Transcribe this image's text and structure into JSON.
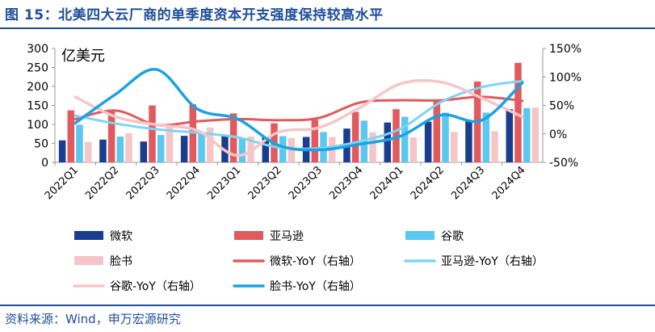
{
  "title": "图 15：北美四大云厂商的单季度资本开支强度保持较高水平",
  "source": "资料来源：Wind，申万宏源研究",
  "chart_data": {
    "type": "bar",
    "unit_label": "亿美元",
    "categories": [
      "2022Q1",
      "2022Q2",
      "2022Q3",
      "2022Q4",
      "2023Q1",
      "2023Q2",
      "2023Q3",
      "2023Q4",
      "2024Q1",
      "2024Q2",
      "2024Q3",
      "2024Q4"
    ],
    "left_axis": {
      "min": 0,
      "max": 300,
      "ticks": [
        0,
        50,
        100,
        150,
        200,
        250,
        300
      ]
    },
    "right_axis": {
      "min": -50,
      "max": 150,
      "ticks": [
        -50,
        0,
        50,
        100,
        150
      ],
      "tick_labels": [
        "-50%",
        "0%",
        "50%",
        "100%",
        "150%"
      ]
    },
    "bar_series": [
      {
        "name": "微软",
        "color": "#1a3d8f",
        "values": [
          58,
          60,
          55,
          70,
          70,
          67,
          67,
          89,
          105,
          107,
          110,
          140
        ]
      },
      {
        "name": "亚马逊",
        "color": "#e05a5e",
        "values": [
          137,
          138,
          150,
          153,
          129,
          103,
          112,
          133,
          140,
          163,
          213,
          262
        ]
      },
      {
        "name": "谷歌",
        "color": "#5bc8ef",
        "values": [
          99,
          68,
          72,
          76,
          62,
          69,
          80,
          110,
          120,
          131,
          131,
          143
        ]
      },
      {
        "name": "脸书",
        "color": "#f6c5c7",
        "values": [
          54,
          77,
          93,
          92,
          68,
          64,
          67,
          79,
          66,
          80,
          82,
          144
        ]
      }
    ],
    "line_series": [
      {
        "name": "微软-YoY（右轴）",
        "color": "#e05a5e",
        "values": [
          26,
          41,
          16,
          22,
          26,
          24,
          28,
          55,
          59,
          59,
          65,
          58
        ]
      },
      {
        "name": "亚马逊-YoY（右轴）",
        "color": "#7fd3f3",
        "values": [
          32,
          18,
          8,
          2,
          -6,
          -24,
          -25,
          -13,
          9,
          56,
          82,
          93
        ]
      },
      {
        "name": "谷歌-YoY（右轴）",
        "color": "#f6c5c7",
        "values": [
          65,
          30,
          16,
          6,
          -38,
          3,
          11,
          46,
          88,
          91,
          63,
          30
        ]
      },
      {
        "name": "脸书-YoY（右轴）",
        "color": "#1aa3e0",
        "values": [
          19,
          70,
          113,
          44,
          26,
          -20,
          -28,
          -18,
          -4,
          33,
          24,
          90
        ]
      }
    ]
  }
}
